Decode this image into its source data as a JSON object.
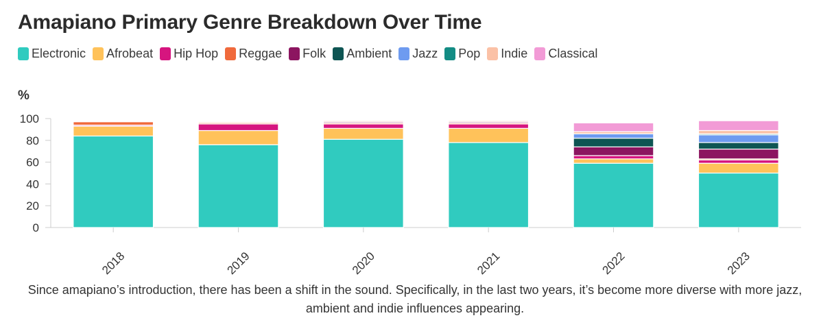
{
  "title": "Amapiano Primary Genre Breakdown Over Time",
  "caption": "Since amapiano’s introduction, there has been a shift in the sound. Specifically, in the last two years, it’s become more diverse with more jazz, ambient and indie influences appearing.",
  "legend": [
    {
      "label": "Electronic",
      "color": "#30CBBF"
    },
    {
      "label": "Afrobeat",
      "color": "#FFC25A"
    },
    {
      "label": "Hip Hop",
      "color": "#D6157F"
    },
    {
      "label": "Reggae",
      "color": "#F06A3C"
    },
    {
      "label": "Folk",
      "color": "#8C1560"
    },
    {
      "label": "Ambient",
      "color": "#0E5553"
    },
    {
      "label": "Jazz",
      "color": "#6E9BF0"
    },
    {
      "label": "Pop",
      "color": "#138C84"
    },
    {
      "label": "Indie",
      "color": "#FBC1A6"
    },
    {
      "label": "Classical",
      "color": "#F29BD6"
    }
  ],
  "chart_data": {
    "type": "bar",
    "stacked": true,
    "ylabel": "%",
    "xlabel": "",
    "ylim": [
      0,
      100
    ],
    "yticks": [
      0,
      20,
      40,
      60,
      80,
      100
    ],
    "categories": [
      "2018",
      "2019",
      "2020",
      "2021",
      "2022",
      "2023"
    ],
    "series": [
      {
        "name": "Electronic",
        "color": "#30CBBF",
        "values": [
          84,
          76,
          81,
          78,
          59,
          50
        ]
      },
      {
        "name": "Afrobeat",
        "color": "#FFC25A",
        "values": [
          9,
          13,
          10,
          13,
          4,
          9
        ]
      },
      {
        "name": "Hip Hop",
        "color": "#D6157F",
        "values": [
          1,
          6,
          4,
          4,
          3,
          3
        ]
      },
      {
        "name": "Reggae",
        "color": "#F06A3C",
        "values": [
          3,
          1,
          1,
          1,
          0,
          1
        ]
      },
      {
        "name": "Folk",
        "color": "#8C1560",
        "values": [
          0,
          0,
          1,
          1,
          8,
          9
        ]
      },
      {
        "name": "Ambient",
        "color": "#0E5553",
        "values": [
          0,
          0,
          0,
          0,
          8,
          6
        ]
      },
      {
        "name": "Jazz",
        "color": "#6E9BF0",
        "values": [
          0,
          0,
          0,
          0,
          4,
          7
        ]
      },
      {
        "name": "Pop",
        "color": "#138C84",
        "values": [
          0,
          0,
          0,
          0,
          0,
          1
        ]
      },
      {
        "name": "Indie",
        "color": "#FBC1A6",
        "values": [
          0,
          1,
          1,
          1,
          2,
          3
        ]
      },
      {
        "name": "Classical",
        "color": "#F29BD6",
        "values": [
          0,
          0,
          0,
          0,
          8,
          9
        ]
      }
    ]
  }
}
